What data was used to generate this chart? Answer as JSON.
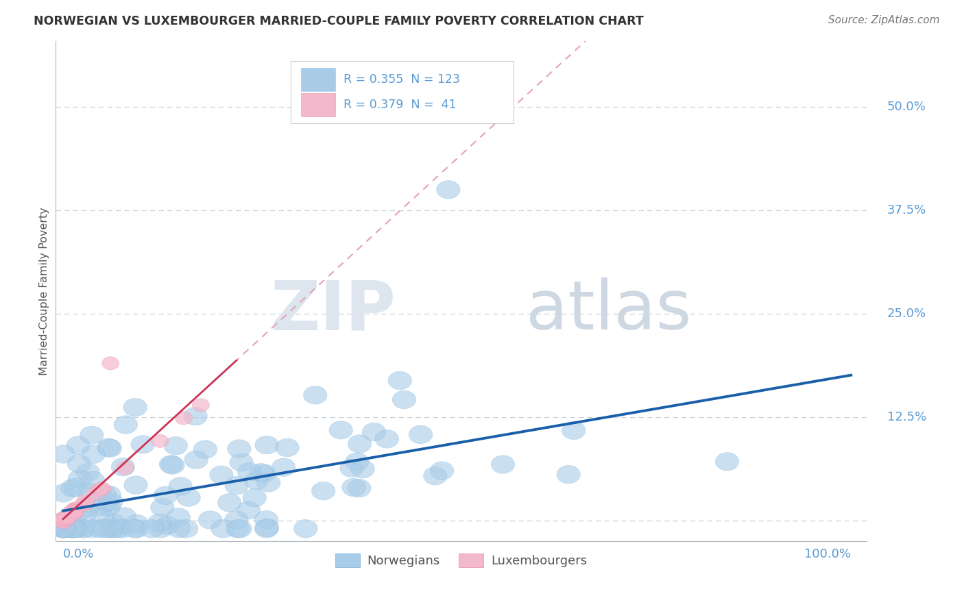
{
  "title": "NORWEGIAN VS LUXEMBOURGER MARRIED-COUPLE FAMILY POVERTY CORRELATION CHART",
  "source_text": "Source: ZipAtlas.com",
  "ylabel": "Married-Couple Family Poverty",
  "watermark_zip": "ZIP",
  "watermark_atlas": "atlas",
  "legend_bottom": [
    "Norwegians",
    "Luxembourgers"
  ],
  "blue_color": "#a8cce8",
  "blue_color_edge": "#7ab0d8",
  "pink_color": "#f4b8cc",
  "pink_color_edge": "#e890a8",
  "blue_line_color": "#1a5faa",
  "pink_line_color": "#cc3355",
  "pink_dash_color": "#e8a0b8",
  "axis_label_color": "#5b9bd5",
  "title_color": "#333333",
  "grid_color": "#c8d4dc",
  "background_color": "#ffffff",
  "xlim": [
    -0.01,
    1.02
  ],
  "ylim": [
    -0.025,
    0.58
  ],
  "ytick_vals": [
    0.0,
    0.125,
    0.25,
    0.375,
    0.5
  ],
  "ytick_labels": [
    "",
    "12.5%",
    "25.0%",
    "37.5%",
    "50.0%"
  ],
  "blue_R": 0.355,
  "blue_N": 123,
  "pink_R": 0.379,
  "pink_N": 41
}
